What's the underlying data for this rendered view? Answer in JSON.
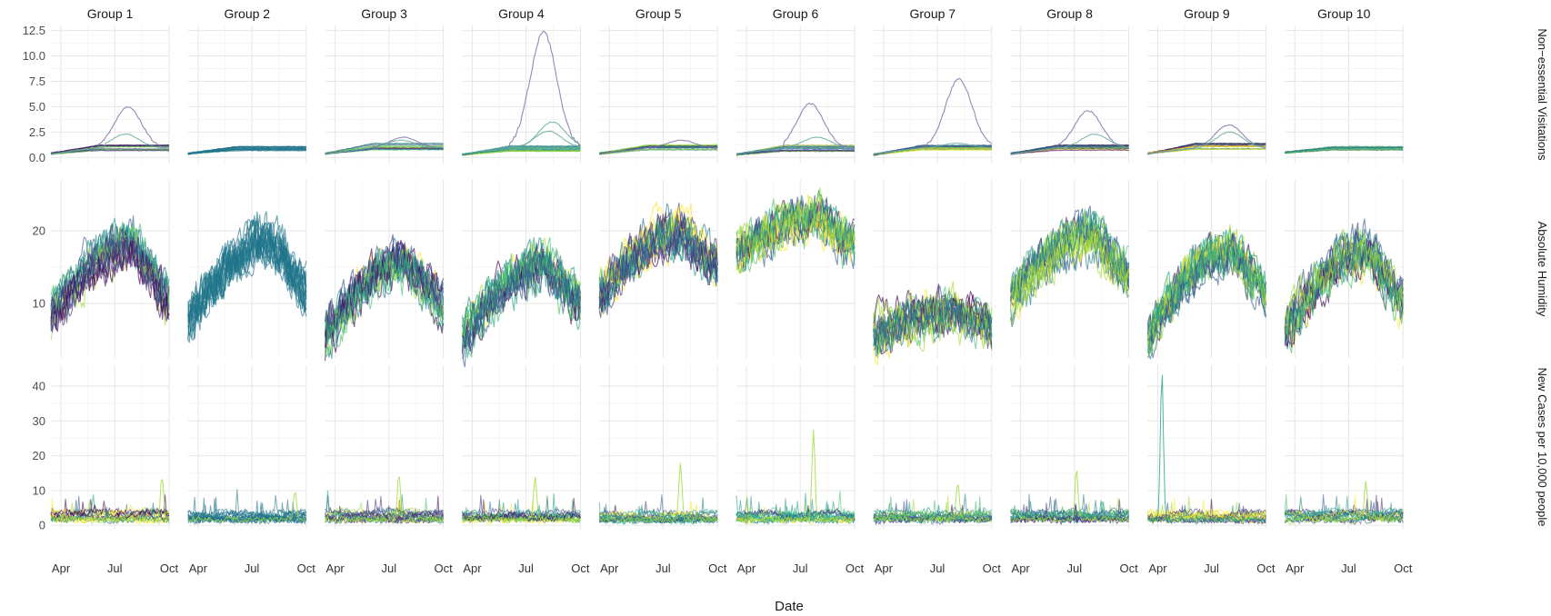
{
  "chart_data": {
    "type": "line",
    "title": "",
    "xlabel": "Date",
    "x_ticks": [
      "Apr",
      "Jul",
      "Oct"
    ],
    "x_range": [
      "2020-03-15",
      "2020-10-01"
    ],
    "x_tick_dates": [
      "2020-04-01",
      "2020-07-01",
      "2020-10-01"
    ],
    "groups": [
      "Group 1",
      "Group 2",
      "Group 3",
      "Group 4",
      "Group 5",
      "Group 6",
      "Group 7",
      "Group 8",
      "Group 9",
      "Group 10"
    ],
    "rows": [
      {
        "label": "Non−essential Visitations",
        "ylim": [
          -0.6,
          13
        ],
        "y_ticks": [
          0.0,
          2.5,
          5.0,
          7.5,
          10.0,
          12.5
        ],
        "y_tick_labels": [
          "0.0",
          "2.5",
          "5.0",
          "7.5",
          "10.0",
          "12.5"
        ],
        "groups": [
          {
            "band": [
              0.3,
              1.2
            ],
            "peaks": [
              {
                "max": 5.0
              },
              {
                "max": 2.3
              }
            ]
          },
          {
            "band": [
              0.3,
              1.1
            ],
            "peaks": []
          },
          {
            "band": [
              0.3,
              1.4
            ],
            "peaks": [
              {
                "max": 2.0
              },
              {
                "max": 1.7
              }
            ]
          },
          {
            "band": [
              0.2,
              1.2
            ],
            "peaks": [
              {
                "max": 12.3
              },
              {
                "max": 3.5
              },
              {
                "max": 2.6
              }
            ]
          },
          {
            "band": [
              0.3,
              1.3
            ],
            "peaks": [
              {
                "max": 1.7
              }
            ]
          },
          {
            "band": [
              0.2,
              1.2
            ],
            "peaks": [
              {
                "max": 5.3
              },
              {
                "max": 2.0
              }
            ]
          },
          {
            "band": [
              0.2,
              1.2
            ],
            "peaks": [
              {
                "max": 7.7
              },
              {
                "max": 1.4
              }
            ]
          },
          {
            "band": [
              0.3,
              1.3
            ],
            "peaks": [
              {
                "max": 4.6
              },
              {
                "max": 2.3
              }
            ]
          },
          {
            "band": [
              0.3,
              1.4
            ],
            "peaks": [
              {
                "max": 3.2
              },
              {
                "max": 2.5
              }
            ]
          },
          {
            "band": [
              0.4,
              1.1
            ],
            "peaks": []
          }
        ]
      },
      {
        "label": "Absolute Humidity",
        "ylim": [
          2.5,
          27
        ],
        "y_ticks": [
          10,
          20
        ],
        "y_tick_labels": [
          "10",
          "20"
        ],
        "groups": [
          {
            "start": 8,
            "peak": 18,
            "end": 10
          },
          {
            "start": 8,
            "peak": 19,
            "end": 12
          },
          {
            "start": 5,
            "peak": 15,
            "end": 9
          },
          {
            "start": 5,
            "peak": 15,
            "end": 10
          },
          {
            "start": 11,
            "peak": 20,
            "end": 15
          },
          {
            "start": 17,
            "peak": 22,
            "end": 18
          },
          {
            "start": 6,
            "peak": 9,
            "end": 7
          },
          {
            "start": 10,
            "peak": 19,
            "end": 13
          },
          {
            "start": 5,
            "peak": 17,
            "end": 11
          },
          {
            "start": 6,
            "peak": 17,
            "end": 10
          }
        ]
      },
      {
        "label": "New Cases per 10,000 people",
        "ylim": [
          -1,
          46
        ],
        "y_ticks": [
          0,
          10,
          20,
          30,
          40
        ],
        "y_tick_labels": [
          "0",
          "10",
          "20",
          "30",
          "40"
        ],
        "groups": [
          {
            "max": 14
          },
          {
            "max": 10
          },
          {
            "max": 15
          },
          {
            "max": 14
          },
          {
            "max": 18
          },
          {
            "max": 27
          },
          {
            "max": 12
          },
          {
            "max": 16
          },
          {
            "max": 44
          },
          {
            "max": 12
          }
        ]
      }
    ],
    "colors": {
      "palette": [
        "#440154",
        "#46337e",
        "#365c8d",
        "#277f8e",
        "#1fa187",
        "#4ac16d",
        "#9fda3a",
        "#fde725"
      ],
      "group2_color": "#21748b"
    },
    "grid": true,
    "legend": "none"
  }
}
